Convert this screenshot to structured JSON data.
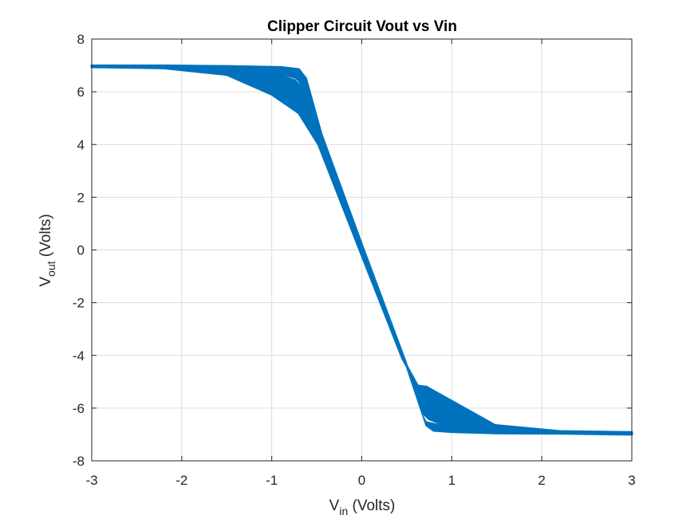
{
  "chart_data": {
    "type": "line",
    "title": "Clipper Circuit Vout vs Vin",
    "xlabel": {
      "main": "V",
      "sub": "in",
      "rest": " (Volts)"
    },
    "ylabel": {
      "main": "V",
      "sub": "out",
      "rest": " (Volts)"
    },
    "xlim": [
      -3,
      3
    ],
    "ylim": [
      -8,
      8
    ],
    "xticks": [
      -3,
      -2,
      -1,
      0,
      1,
      2,
      3
    ],
    "yticks": [
      -8,
      -6,
      -4,
      -2,
      0,
      2,
      4,
      6,
      8
    ],
    "grid": true,
    "line_color": "#0072BD",
    "series": [
      {
        "band_outline": [
          [
            -3.0,
            6.99
          ],
          [
            -2.2,
            6.99
          ],
          [
            -1.5,
            6.97
          ],
          [
            -0.9,
            6.93
          ],
          [
            -0.7,
            6.85
          ],
          [
            -0.62,
            6.5
          ],
          [
            -0.45,
            4.4
          ],
          [
            0.0,
            0.2
          ],
          [
            0.48,
            -4.2
          ],
          [
            0.72,
            -6.65
          ],
          [
            0.8,
            -6.85
          ],
          [
            1.0,
            -6.9
          ],
          [
            1.5,
            -6.95
          ],
          [
            2.2,
            -6.96
          ],
          [
            3.0,
            -7.0
          ],
          [
            3.0,
            -6.92
          ],
          [
            2.2,
            -6.88
          ],
          [
            1.48,
            -6.65
          ],
          [
            0.72,
            -5.2
          ],
          [
            0.62,
            -5.15
          ],
          [
            0.45,
            -4.1
          ],
          [
            0.0,
            -0.2
          ],
          [
            -0.48,
            4.0
          ],
          [
            -0.7,
            5.2
          ],
          [
            -1.0,
            5.9
          ],
          [
            -1.5,
            6.65
          ],
          [
            -2.2,
            6.9
          ],
          [
            -3.0,
            6.94
          ]
        ],
        "inner_gaps": [
          [
            [
              -0.85,
              6.6
            ],
            [
              -0.72,
              6.45
            ],
            [
              -0.68,
              6.25
            ],
            [
              -0.74,
              6.5
            ]
          ],
          [
            [
              0.68,
              -6.25
            ],
            [
              0.72,
              -6.5
            ],
            [
              0.85,
              -6.6
            ],
            [
              0.74,
              -6.45
            ]
          ]
        ]
      }
    ]
  }
}
